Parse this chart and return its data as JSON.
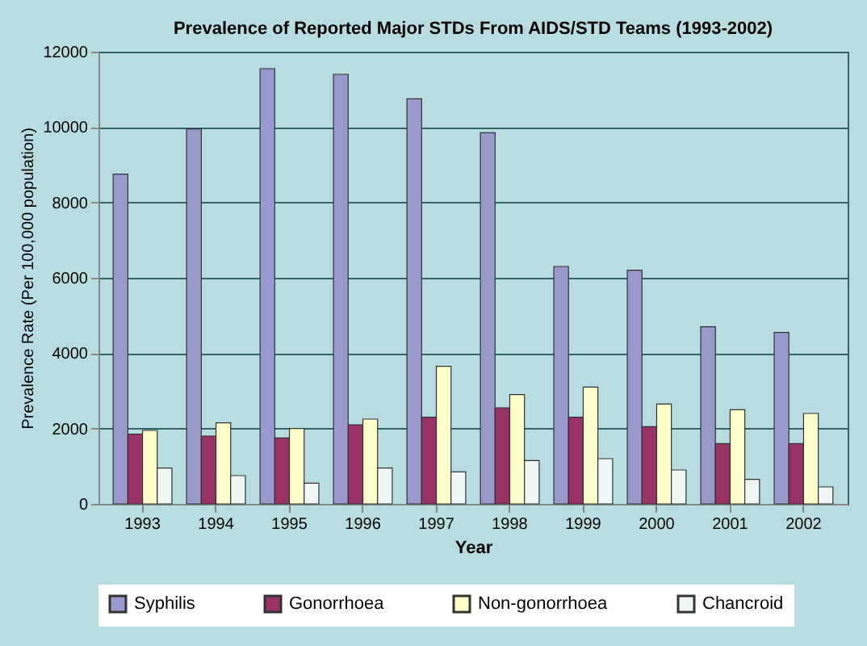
{
  "chart_data": {
    "type": "bar",
    "title": "Prevalence of Reported Major STDs From AIDS/STD Teams (1993-2002)",
    "xlabel": "Year",
    "ylabel": "Prevalence Rate (Per 100,000 population)",
    "categories": [
      "1993",
      "1994",
      "1995",
      "1996",
      "1997",
      "1998",
      "1999",
      "2000",
      "2001",
      "2002"
    ],
    "series": [
      {
        "name": "Syphilis",
        "color": "#9999cc",
        "values": [
          8750,
          9950,
          11550,
          11400,
          10750,
          9850,
          6300,
          6200,
          4700,
          4550
        ]
      },
      {
        "name": "Gonorrhoea",
        "color": "#993366",
        "values": [
          1850,
          1800,
          1750,
          2100,
          2300,
          2550,
          2300,
          2050,
          1600,
          1600
        ]
      },
      {
        "name": "Non-gonorrhoea",
        "color": "#ffffcc",
        "values": [
          1950,
          2150,
          2000,
          2250,
          3650,
          2900,
          3100,
          2650,
          2500,
          2400
        ]
      },
      {
        "name": "Chancroid",
        "color": "#eef6f6",
        "values": [
          950,
          750,
          550,
          950,
          850,
          1150,
          1200,
          900,
          650,
          450
        ]
      }
    ],
    "ylim": [
      0,
      12000
    ],
    "yticks": [
      0,
      2000,
      4000,
      6000,
      8000,
      10000,
      12000
    ],
    "grid": "y",
    "legend": "bottom"
  }
}
